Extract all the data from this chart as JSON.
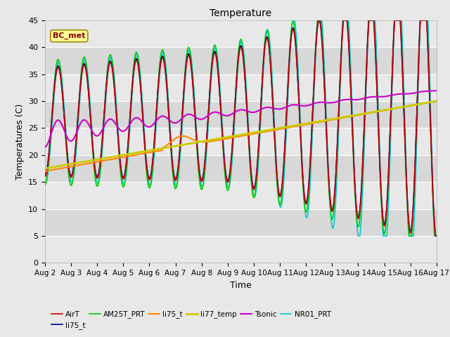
{
  "title": "Temperature",
  "xlabel": "Time",
  "ylabel": "Temperatures (C)",
  "ylim": [
    0,
    45
  ],
  "x_tick_labels": [
    "Aug 2",
    "Aug 3",
    "Aug 4",
    "Aug 5",
    "Aug 6",
    "Aug 7",
    "Aug 8",
    "Aug 9",
    "Aug 10",
    "Aug 11",
    "Aug 12",
    "Aug 13",
    "Aug 14",
    "Aug 15",
    "Aug 16",
    "Aug 17"
  ],
  "annotation_text": "BC_met",
  "background_color": "#e8e8e8",
  "plot_bg_color": "#d8d8d8",
  "grid_color": "#ffffff",
  "series": {
    "AirT": {
      "color": "#cc0000",
      "lw": 1.2
    },
    "li75_t": {
      "color": "#000099",
      "lw": 1.2
    },
    "AM25T_PRT": {
      "color": "#00cc00",
      "lw": 1.2
    },
    "li75_t2": {
      "color": "#ff8800",
      "lw": 1.5
    },
    "li77_temp": {
      "color": "#cccc00",
      "lw": 2.0
    },
    "Tsonic": {
      "color": "#cc00cc",
      "lw": 1.5
    },
    "NR01_PRT": {
      "color": "#00cccc",
      "lw": 1.2
    }
  },
  "legend_entries": [
    {
      "label": "AirT",
      "color": "#cc0000",
      "lw": 1.2
    },
    {
      "label": "li75_t",
      "color": "#000099",
      "lw": 1.2
    },
    {
      "label": "AM25T_PRT",
      "color": "#00cc00",
      "lw": 1.2
    },
    {
      "label": "li75_t",
      "color": "#ff8800",
      "lw": 1.5
    },
    {
      "label": "li77_temp",
      "color": "#cccc00",
      "lw": 2.0
    },
    {
      "label": "Tsonic",
      "color": "#cc00cc",
      "lw": 1.5
    },
    {
      "label": "NR01_PRT",
      "color": "#00cccc",
      "lw": 1.2
    }
  ],
  "band_colors": [
    "#e8e8e8",
    "#d8d8d8"
  ],
  "band_edges": [
    0,
    5,
    10,
    15,
    20,
    25,
    30,
    35,
    40,
    45
  ]
}
